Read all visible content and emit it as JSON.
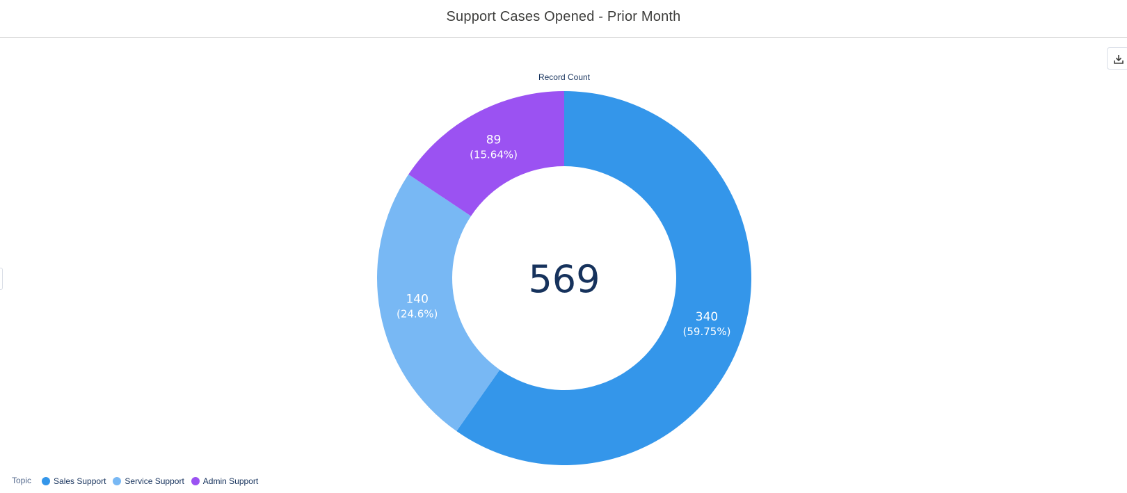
{
  "header": {
    "title": "Support Cases Opened - Prior Month"
  },
  "toolbar": {
    "download_icon": "download-icon"
  },
  "chart_data": {
    "type": "donut",
    "title": "Support Cases Opened - Prior Month",
    "measure_label": "Record Count",
    "total": "569",
    "legend_title": "Topic",
    "legend_position": "bottom-left",
    "categories": [
      "Sales Support",
      "Service Support",
      "Admin Support"
    ],
    "values": [
      340,
      140,
      89
    ],
    "value_labels": [
      "340",
      "140",
      "89"
    ],
    "percent_labels": [
      "(59.75%)",
      "(24.6%)",
      "(15.64%)"
    ],
    "colors": [
      "#3496ea",
      "#78b8f4",
      "#9b52f2"
    ]
  }
}
